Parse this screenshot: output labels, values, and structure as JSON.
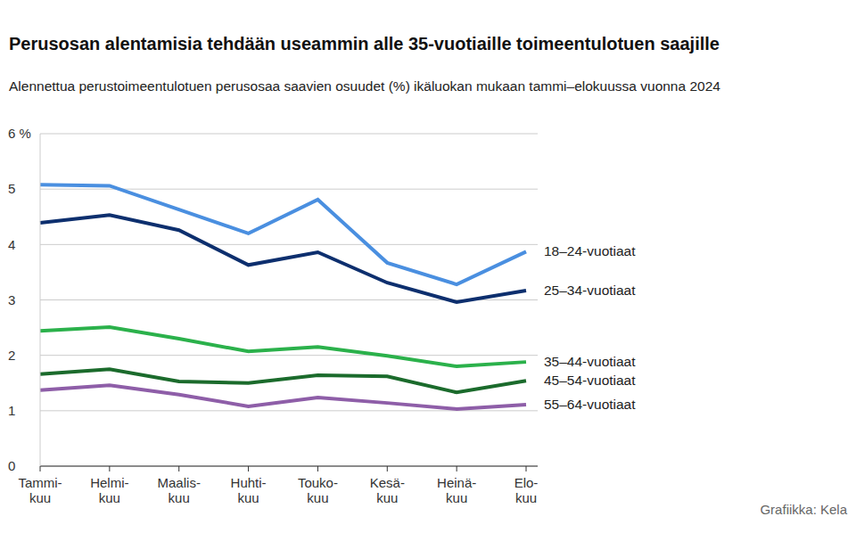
{
  "chart_data": {
    "type": "line",
    "title": "Perusosan alentamisia tehdään useammin alle 35-vuotiaille toimeentulotuen saajille",
    "subtitle": "Alennettua perustoimeentulotuen perusosaa saavien osuudet (%) ikäluokan mukaan tammi–elokuussa vuonna 2024",
    "source": "Grafiikka: Kela",
    "categories": [
      "Tammi-\nkuu",
      "Helmi-\nkuu",
      "Maalis-\nkuu",
      "Huhti-\nkuu",
      "Touko-\nkuu",
      "Kesä-\nkuu",
      "Heinä-\nkuu",
      "Elo-\nkuu"
    ],
    "series": [
      {
        "name": "18–24-vuotiaat",
        "color": "#4a8fe0",
        "values": [
          5.08,
          5.06,
          4.63,
          4.2,
          4.81,
          3.67,
          3.28,
          3.87
        ]
      },
      {
        "name": "25–34-vuotiaat",
        "color": "#0d2f6e",
        "values": [
          4.39,
          4.53,
          4.26,
          3.63,
          3.86,
          3.31,
          2.96,
          3.17
        ]
      },
      {
        "name": "35–44-vuotiaat",
        "color": "#2bb14b",
        "values": [
          2.44,
          2.51,
          2.3,
          2.07,
          2.15,
          1.99,
          1.8,
          1.88
        ]
      },
      {
        "name": "45–54-vuotiaat",
        "color": "#1b6b2c",
        "values": [
          1.66,
          1.75,
          1.53,
          1.5,
          1.64,
          1.62,
          1.33,
          1.54
        ]
      },
      {
        "name": "55–64-vuotiaat",
        "color": "#8e5ea8",
        "values": [
          1.37,
          1.46,
          1.29,
          1.08,
          1.24,
          1.14,
          1.03,
          1.11
        ]
      }
    ],
    "ylim": [
      0,
      6
    ],
    "yticks": [
      0,
      1,
      2,
      3,
      4,
      5,
      {
        "value": 6,
        "label": "6 %"
      }
    ],
    "grid": true
  }
}
